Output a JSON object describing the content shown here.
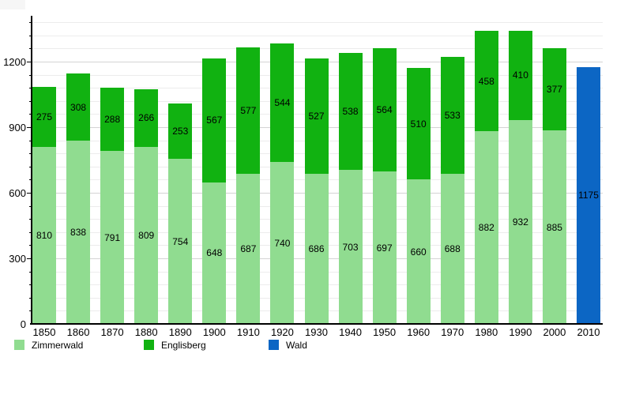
{
  "chart_data": {
    "type": "bar",
    "stacked": true,
    "title": "",
    "xlabel": "",
    "ylabel": "",
    "categories": [
      "1850",
      "1860",
      "1870",
      "1880",
      "1890",
      "1900",
      "1910",
      "1920",
      "1930",
      "1940",
      "1950",
      "1960",
      "1970",
      "1980",
      "1990",
      "2000",
      "2010"
    ],
    "series": [
      {
        "name": "Zimmerwald",
        "color": "#90dc90",
        "values": [
          810,
          838,
          791,
          809,
          754,
          648,
          687,
          740,
          686,
          703,
          697,
          660,
          688,
          882,
          932,
          885,
          0
        ]
      },
      {
        "name": "Englisberg",
        "color": "#11b211",
        "values": [
          275,
          308,
          288,
          266,
          253,
          567,
          577,
          544,
          527,
          538,
          564,
          510,
          533,
          458,
          410,
          377,
          0
        ]
      },
      {
        "name": "Wald",
        "color": "#0c66c4",
        "values": [
          0,
          0,
          0,
          0,
          0,
          0,
          0,
          0,
          0,
          0,
          0,
          0,
          0,
          0,
          0,
          0,
          1175
        ]
      }
    ],
    "ylim": [
      0,
      1400
    ],
    "y_ticks": [
      0,
      300,
      600,
      900,
      1200
    ],
    "y_minor_gridline_step": 60,
    "grid": "horizontal",
    "legend_position": "bottom"
  },
  "colors": {
    "grid_minor": "#ececec",
    "grid_major": "#d4d4d4",
    "axis": "#000000",
    "background": "#ffffff"
  }
}
